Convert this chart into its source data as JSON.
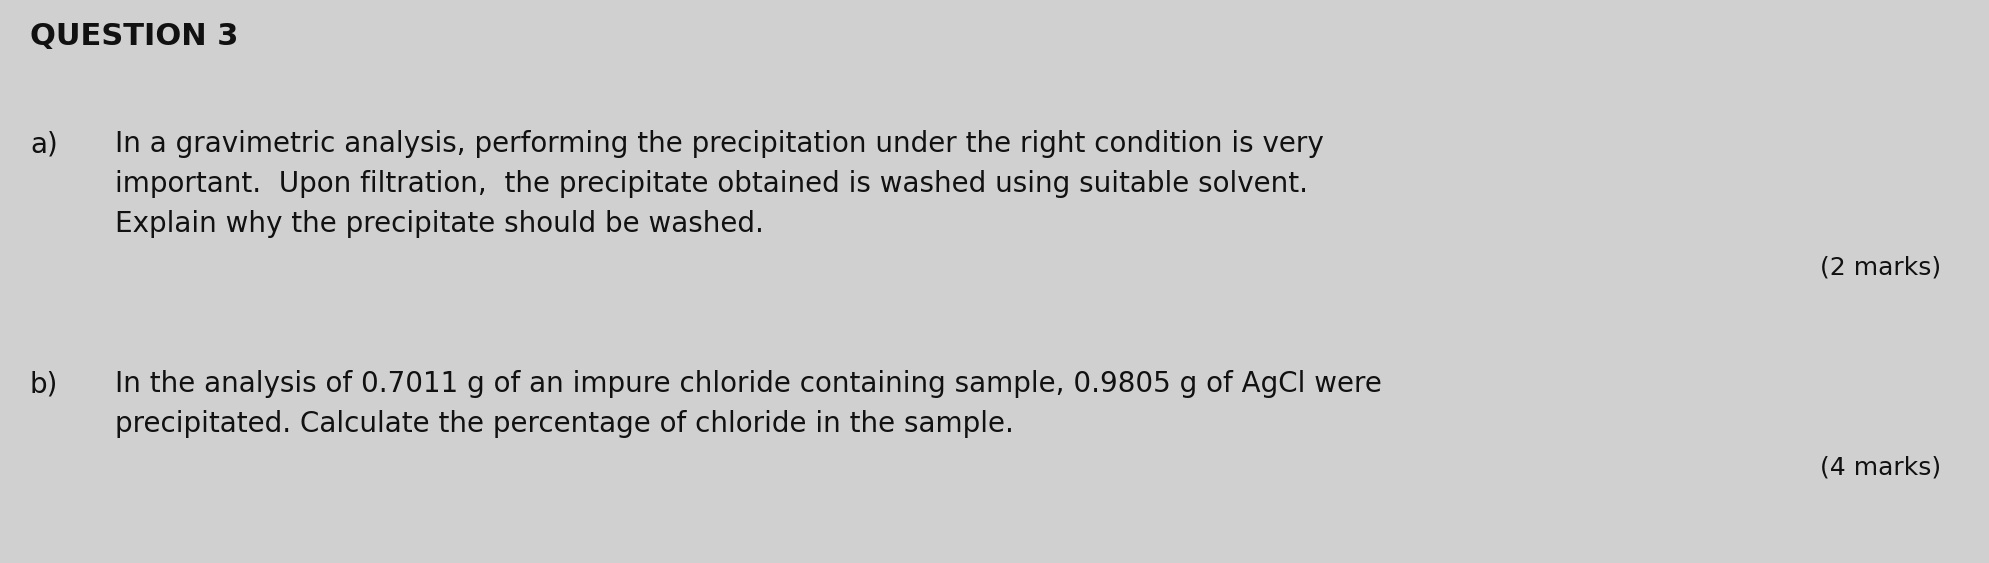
{
  "background_color": "#d0d0d0",
  "title": "QUESTION 3",
  "title_fontsize": 22,
  "title_fontweight": "bold",
  "part_a_label": "a)",
  "part_a_line1": "In a gravimetric analysis, performing the precipitation under the right condition is very",
  "part_a_line2": "important.  Upon filtration,  the precipitate obtained is washed using suitable solvent.",
  "part_a_line3": "Explain why the precipitate should be washed.",
  "part_a_marks": "(2 marks)",
  "part_b_label": "b)",
  "part_b_line1": "In the analysis of 0.7011 g of an impure chloride containing sample, 0.9805 g of AgCl were",
  "part_b_line2": "precipitated. Calculate the percentage of chloride in the sample.",
  "part_b_marks": "(4 marks)",
  "text_fontsize": 20,
  "marks_fontsize": 18,
  "text_color": "#111111"
}
